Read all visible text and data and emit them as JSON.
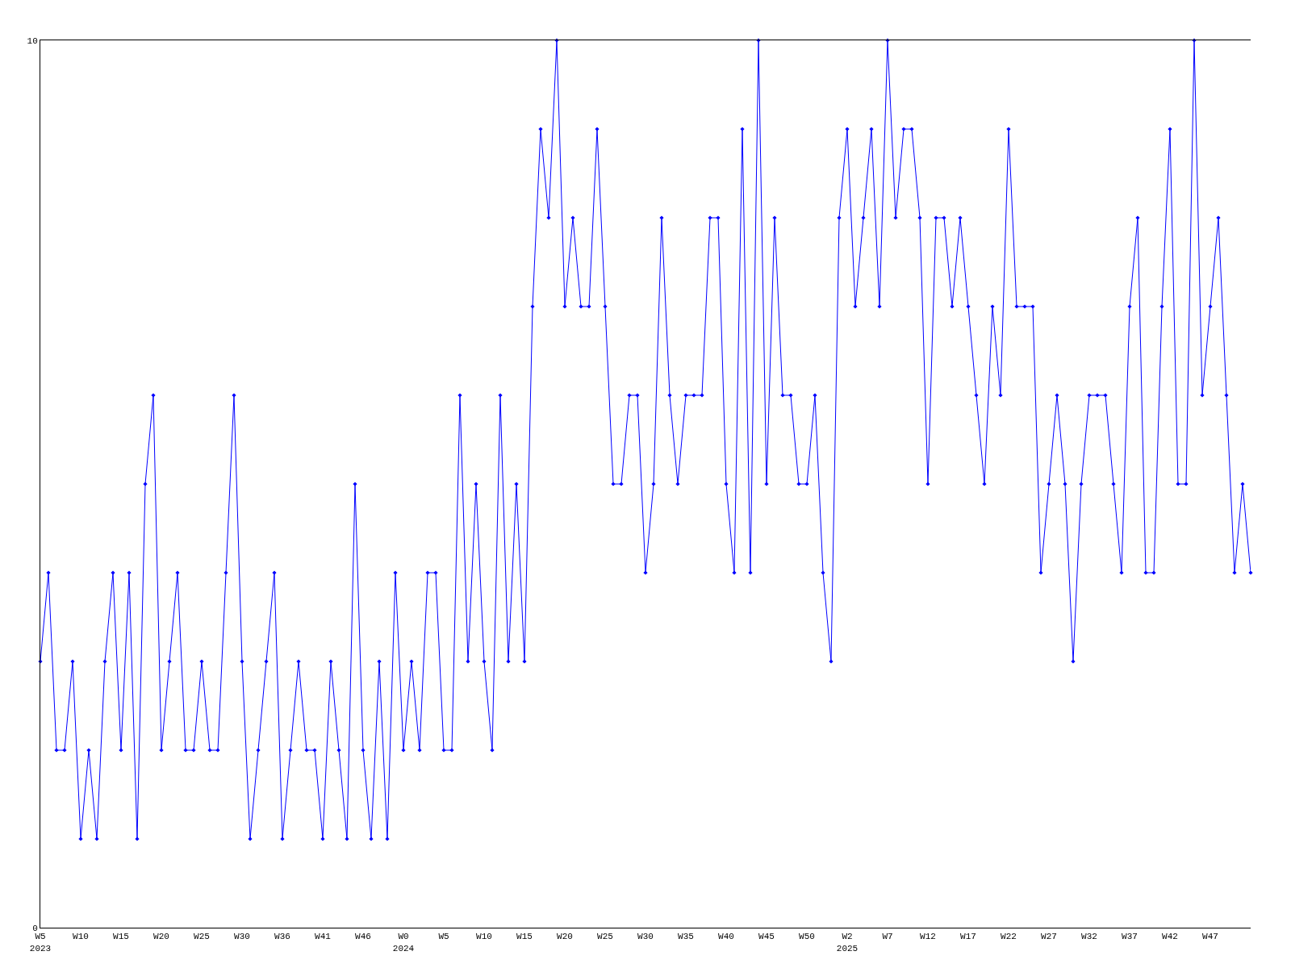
{
  "chart_data": {
    "type": "line",
    "categories": [
      "W5\n2023",
      null,
      null,
      null,
      null,
      "W10",
      null,
      null,
      null,
      null,
      "W15",
      null,
      null,
      null,
      null,
      "W20",
      null,
      null,
      null,
      null,
      "W25",
      null,
      null,
      null,
      null,
      "W30",
      null,
      null,
      null,
      null,
      "W36",
      null,
      null,
      null,
      null,
      "W41",
      null,
      null,
      null,
      null,
      "W46",
      null,
      null,
      null,
      null,
      "W0\n2024",
      null,
      null,
      null,
      null,
      "W5",
      null,
      null,
      null,
      null,
      "W10",
      null,
      null,
      null,
      null,
      "W15",
      null,
      null,
      null,
      null,
      "W20",
      null,
      null,
      null,
      null,
      "W25",
      null,
      null,
      null,
      null,
      "W30",
      null,
      null,
      null,
      null,
      "W35",
      null,
      null,
      null,
      null,
      "W40",
      null,
      null,
      null,
      null,
      "W45",
      null,
      null,
      null,
      null,
      "W50",
      null,
      null,
      null,
      null,
      "W2\n2025",
      null,
      null,
      null,
      null,
      "W7",
      null,
      null,
      null,
      null,
      "W12",
      null,
      null,
      null,
      null,
      "W17",
      null,
      null,
      null,
      null,
      "W22",
      null,
      null,
      null,
      null,
      "W27",
      null,
      null,
      null,
      null,
      "W32",
      null,
      null,
      null,
      null,
      "W37",
      null,
      null,
      null,
      null,
      "W42",
      null,
      null,
      null,
      null,
      "W47",
      null,
      null,
      null,
      null,
      null
    ],
    "series": [
      {
        "color": "#0000ff",
        "values": [
          3,
          4,
          2,
          2,
          3,
          1,
          2,
          1,
          3,
          4,
          2,
          4,
          1,
          5,
          6,
          2,
          3,
          4,
          2,
          2,
          3,
          2,
          2,
          4,
          6,
          3,
          1,
          2,
          3,
          4,
          1,
          2,
          3,
          2,
          2,
          1,
          3,
          2,
          1,
          5,
          2,
          1,
          3,
          1,
          4,
          2,
          3,
          2,
          4,
          4,
          2,
          2,
          6,
          3,
          5,
          3,
          2,
          6,
          3,
          5,
          3,
          7,
          9,
          8,
          10,
          7,
          8,
          7,
          7,
          9,
          7,
          5,
          5,
          6,
          6,
          4,
          5,
          8,
          6,
          5,
          6,
          6,
          6,
          8,
          8,
          5,
          4,
          9,
          4,
          10,
          5,
          8,
          6,
          6,
          5,
          5,
          6,
          4,
          3,
          8,
          9,
          7,
          8,
          9,
          7,
          10,
          8,
          9,
          9,
          8,
          5,
          8,
          8,
          7,
          8,
          7,
          6,
          5,
          7,
          6,
          9,
          7,
          7,
          7,
          4,
          5,
          6,
          5,
          3,
          5,
          6,
          6,
          6,
          5,
          4,
          7,
          8,
          4,
          4,
          7,
          9,
          5,
          5,
          10,
          6,
          7,
          8,
          6,
          4,
          5,
          4
        ]
      }
    ],
    "ylim": [
      0,
      10
    ],
    "yticks": [
      0,
      10
    ],
    "marker": "diamond",
    "line_style": "solid",
    "legend": false
  }
}
